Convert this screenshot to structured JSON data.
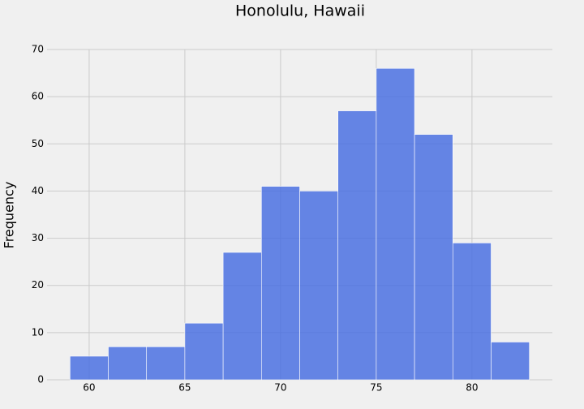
{
  "chart_data": {
    "type": "histogram",
    "title": "Honolulu, Hawaii",
    "y_label": "Frequency",
    "bins": [
      59,
      61,
      63,
      65,
      67,
      69,
      71,
      73,
      75,
      77,
      79,
      81,
      83
    ],
    "values": [
      5,
      7,
      7,
      12,
      27,
      41,
      40,
      57,
      66,
      52,
      29,
      8
    ],
    "color": "#4169e1",
    "xlim": [
      57.8,
      84.2
    ],
    "xticks": [
      60,
      65,
      70,
      75,
      80
    ],
    "ylim": [
      0,
      70
    ],
    "yticks": [
      0,
      10,
      20,
      30,
      40,
      50,
      60,
      70
    ],
    "grid": true
  }
}
